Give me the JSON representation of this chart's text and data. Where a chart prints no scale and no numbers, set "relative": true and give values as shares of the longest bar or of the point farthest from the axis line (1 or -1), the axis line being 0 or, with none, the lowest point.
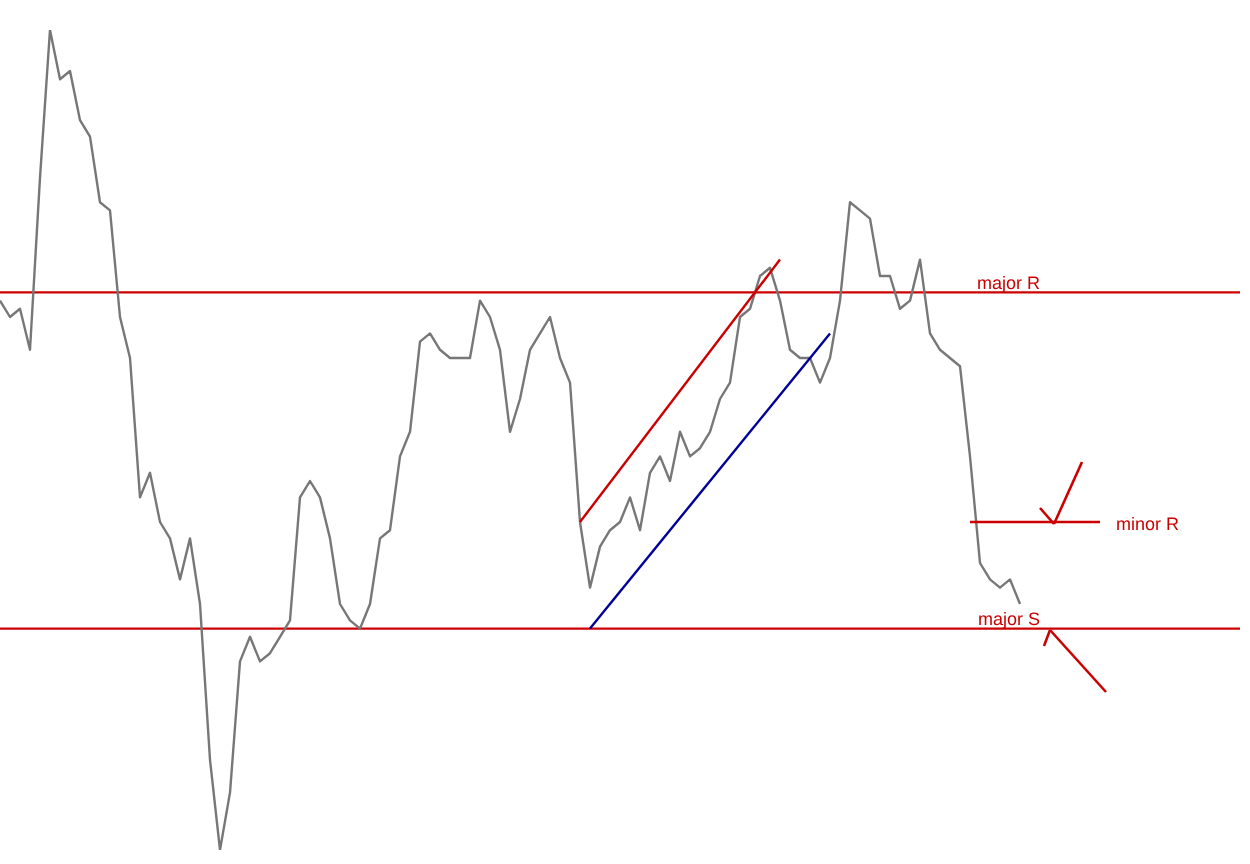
{
  "chart_data": {
    "type": "line",
    "relative": true,
    "categories": [
      null,
      null,
      null,
      null,
      null,
      null,
      null,
      null,
      null,
      null,
      null,
      null,
      null,
      null,
      null,
      null,
      null,
      null,
      null,
      null,
      null,
      null,
      null,
      null,
      null,
      null,
      null,
      null,
      null,
      null,
      null,
      null,
      null,
      null,
      null,
      null,
      null,
      null,
      null,
      null,
      null,
      null,
      null,
      null,
      null,
      null,
      null,
      null,
      null,
      null,
      null,
      null,
      null,
      null,
      null,
      null,
      null,
      null,
      null,
      null,
      null,
      null,
      null,
      null,
      null,
      null,
      null,
      null,
      null,
      null,
      null,
      null,
      null,
      null,
      null,
      null,
      null,
      null,
      null,
      null,
      null,
      null,
      null,
      null,
      null,
      null,
      null,
      null,
      null,
      null,
      null,
      null,
      null,
      null,
      null,
      null,
      null,
      null,
      null,
      null,
      null,
      null,
      null,
      null,
      null,
      null,
      null,
      null,
      null,
      null,
      null,
      null,
      null,
      null,
      null,
      null,
      null,
      null,
      null,
      null,
      null,
      null,
      null,
      null,
      null
    ],
    "series": [
      {
        "color": "#777777",
        "values": [
          0.67,
          0.65,
          0.66,
          0.61,
          0.82,
          1.0,
          0.94,
          0.95,
          0.89,
          0.87,
          0.79,
          0.78,
          0.65,
          0.6,
          0.43,
          0.46,
          0.4,
          0.38,
          0.33,
          0.38,
          0.3,
          0.11,
          0,
          0.07,
          0.23,
          0.26,
          0.23,
          0.24,
          0.26,
          0.28,
          0.43,
          0.45,
          0.43,
          0.38,
          0.3,
          0.28,
          0.27,
          0.3,
          0.38,
          0.39,
          0.48,
          0.51,
          0.62,
          0.63,
          0.61,
          0.6,
          0.6,
          0.6,
          0.67,
          0.65,
          0.61,
          0.51,
          0.55,
          0.61,
          0.63,
          0.65,
          0.6,
          0.57,
          0.4,
          0.32,
          0.37,
          0.39,
          0.4,
          0.43,
          0.39,
          0.46,
          0.48,
          0.45,
          0.51,
          0.48,
          0.49,
          0.51,
          0.55,
          0.57,
          0.65,
          0.66,
          0.7,
          0.71,
          0.67,
          0.61,
          0.6,
          0.6,
          0.57,
          0.6,
          0.67,
          0.79,
          0.78,
          0.77,
          0.7,
          0.7,
          0.66,
          0.67,
          0.72,
          0.63,
          0.61,
          0.6,
          0.59,
          0.48,
          0.35,
          0.33,
          0.32,
          0.33,
          0.3,
          null,
          null,
          null,
          null,
          null,
          null,
          null,
          null,
          null,
          null,
          null,
          null,
          null,
          null,
          null,
          null,
          null,
          null,
          null,
          null,
          null,
          null
        ]
      },
      {
        "color": "#cc0000",
        "values": [
          null,
          null,
          null,
          null,
          null,
          null,
          null,
          null,
          null,
          null,
          null,
          null,
          null,
          null,
          null,
          null,
          null,
          null,
          null,
          null,
          null,
          null,
          null,
          null,
          null,
          null,
          null,
          null,
          null,
          null,
          null,
          null,
          null,
          null,
          null,
          null,
          null,
          null,
          null,
          null,
          null,
          null,
          null,
          null,
          null,
          null,
          null,
          null,
          null,
          null,
          null,
          null,
          null,
          null,
          null,
          null,
          null,
          null,
          0.4,
          null,
          null,
          null,
          null,
          null,
          null,
          null,
          null,
          null,
          null,
          null,
          null,
          null,
          null,
          null,
          null,
          null,
          null,
          null,
          0.72,
          null,
          null,
          null,
          null,
          null,
          null,
          null,
          null,
          null,
          null,
          null,
          null,
          null,
          null,
          null,
          null,
          null,
          null,
          null,
          null,
          null,
          null,
          null,
          null,
          null,
          null,
          null,
          null,
          null,
          null,
          null,
          null,
          null,
          null,
          null,
          null,
          null,
          null,
          null,
          null,
          null,
          null,
          null,
          null,
          null,
          null
        ]
      },
      {
        "color": "#000099",
        "values": [
          null,
          null,
          null,
          null,
          null,
          null,
          null,
          null,
          null,
          null,
          null,
          null,
          null,
          null,
          null,
          null,
          null,
          null,
          null,
          null,
          null,
          null,
          null,
          null,
          null,
          null,
          null,
          null,
          null,
          null,
          null,
          null,
          null,
          null,
          null,
          null,
          null,
          null,
          null,
          null,
          null,
          null,
          null,
          null,
          null,
          null,
          null,
          null,
          null,
          null,
          null,
          null,
          null,
          null,
          null,
          null,
          null,
          null,
          null,
          0.27,
          null,
          null,
          null,
          null,
          null,
          null,
          null,
          null,
          null,
          null,
          null,
          null,
          null,
          null,
          null,
          null,
          null,
          null,
          null,
          null,
          null,
          null,
          null,
          0.63,
          null,
          null,
          null,
          null,
          null,
          null,
          null,
          null,
          null,
          null,
          null,
          null,
          null,
          null,
          null,
          null,
          null,
          null,
          null,
          null,
          null,
          null,
          null,
          null,
          null,
          null,
          null,
          null,
          null,
          null,
          null,
          null,
          null,
          null,
          null,
          null,
          null,
          null,
          null,
          null,
          null
        ]
      },
      {
        "name": "minor R",
        "color": "#cc0000",
        "values": [
          null,
          null,
          null,
          null,
          null,
          null,
          null,
          null,
          null,
          null,
          null,
          null,
          null,
          null,
          null,
          null,
          null,
          null,
          null,
          null,
          null,
          null,
          null,
          null,
          null,
          null,
          null,
          null,
          null,
          null,
          null,
          null,
          null,
          null,
          null,
          null,
          null,
          null,
          null,
          null,
          null,
          null,
          null,
          null,
          null,
          null,
          null,
          null,
          null,
          null,
          null,
          null,
          null,
          null,
          null,
          null,
          null,
          null,
          null,
          null,
          null,
          null,
          null,
          null,
          null,
          null,
          null,
          null,
          null,
          null,
          null,
          null,
          null,
          null,
          null,
          null,
          null,
          null,
          null,
          null,
          null,
          null,
          null,
          null,
          null,
          null,
          null,
          null,
          null,
          null,
          null,
          null,
          null,
          null,
          null,
          null,
          null,
          0.4,
          null,
          null,
          null,
          null,
          null,
          null,
          null,
          null,
          null,
          null,
          null,
          null,
          0.4,
          null,
          null,
          null,
          null,
          null,
          null,
          null,
          null,
          null,
          null,
          null,
          null,
          null,
          null
        ]
      }
    ],
    "ref_lines": [
      {
        "axis": "y",
        "value": 0.68,
        "label": "major R",
        "color": "#cc0000"
      },
      {
        "axis": "y",
        "value": 0.27,
        "label": "major S",
        "color": "#cc0000"
      }
    ]
  }
}
